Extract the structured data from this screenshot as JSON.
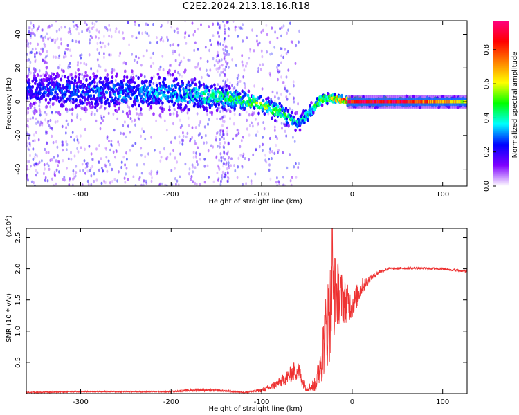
{
  "figure_title": "C2E2.2024.213.18.16.R18",
  "chart_data": [
    {
      "type": "heatmap",
      "xlabel": "Height of straight line (km)",
      "ylabel": "Frequency (Hz)",
      "xlim": [
        -360,
        127
      ],
      "ylim": [
        -50,
        48
      ],
      "x_ticks": [
        -300,
        -200,
        -100,
        0,
        100
      ],
      "y_ticks": [
        -40,
        -20,
        0,
        20,
        40
      ],
      "colorbar": {
        "label": "Normalized spectral amplitude",
        "range": [
          0,
          0.97
        ],
        "ticks": [
          0.0,
          0.2,
          0.4,
          0.6,
          0.8
        ],
        "tick_labels": [
          "0.0",
          "0.2",
          "0.4",
          "0.6",
          "0.8"
        ],
        "colors": [
          "#ffffff",
          "#7f00ff",
          "#0000ff",
          "#00ffff",
          "#00ff00",
          "#ffff00",
          "#ff8000",
          "#ff0000",
          "#ff0080"
        ]
      },
      "ridge": {
        "x": [
          -360,
          -300,
          -200,
          -150,
          -120,
          -100,
          -80,
          -60,
          -50,
          -40,
          -35,
          -30,
          -20,
          -10,
          0,
          50,
          127
        ],
        "y": [
          7,
          6,
          5,
          3,
          1,
          -2,
          -6,
          -13,
          -8,
          -2,
          1,
          2,
          2,
          1,
          0,
          0,
          0
        ],
        "width": [
          10,
          10,
          10,
          7,
          5,
          5,
          5,
          4,
          4,
          3,
          3,
          2.5,
          2.5,
          2.5,
          2.5,
          2.5,
          2.5
        ],
        "amplitude": [
          0.25,
          0.3,
          0.35,
          0.45,
          0.5,
          0.55,
          0.5,
          0.4,
          0.4,
          0.5,
          0.6,
          0.6,
          0.75,
          0.85,
          0.9,
          0.9,
          0.6
        ]
      },
      "grid": false
    },
    {
      "type": "line",
      "xlabel": "Height of straight line (km)",
      "ylabel": "SNR (10 * v/v)",
      "y_multiplier": "(x10",
      "y_multiplier_exp": "4",
      "y_multiplier_close": ")",
      "xlim": [
        -360,
        127
      ],
      "ylim": [
        0,
        2.65
      ],
      "x_ticks": [
        -300,
        -200,
        -100,
        0,
        100
      ],
      "y_ticks": [
        0.5,
        1.0,
        1.5,
        2.0,
        2.5
      ],
      "y_tick_labels": [
        "0.5",
        "1.0",
        "1.5",
        "2.0",
        "2.5"
      ],
      "series": [
        {
          "color": "#ee3333",
          "x": [
            -360,
            -300,
            -200,
            -170,
            -150,
            -120,
            -100,
            -90,
            -80,
            -70,
            -65,
            -60,
            -55,
            -50,
            -40,
            -35,
            -30,
            -25,
            -20,
            -15,
            -10,
            -5,
            0,
            5,
            10,
            20,
            30,
            40,
            60,
            100,
            127
          ],
          "y": [
            0.02,
            0.03,
            0.03,
            0.06,
            0.05,
            0.02,
            0.05,
            0.1,
            0.18,
            0.28,
            0.35,
            0.38,
            0.2,
            0.08,
            0.15,
            0.5,
            0.9,
            1.3,
            1.6,
            1.6,
            1.5,
            1.45,
            1.4,
            1.55,
            1.7,
            1.85,
            1.95,
            2.0,
            2.01,
            2.0,
            1.96
          ],
          "noise": [
            0.01,
            0.01,
            0.01,
            0.03,
            0.02,
            0.01,
            0.03,
            0.05,
            0.08,
            0.12,
            0.15,
            0.18,
            0.1,
            0.05,
            0.12,
            0.35,
            0.6,
            0.8,
            0.7,
            0.5,
            0.4,
            0.3,
            0.2,
            0.2,
            0.15,
            0.05,
            0.03,
            0.02,
            0.02,
            0.02,
            0.02
          ],
          "peak": {
            "x": -22,
            "y": 2.65
          }
        }
      ],
      "grid": false
    }
  ]
}
